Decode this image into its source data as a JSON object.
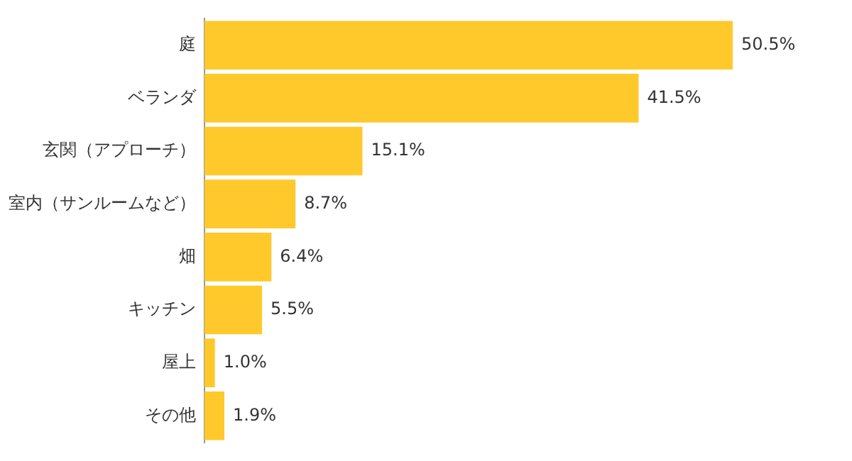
{
  "chart_data": {
    "type": "bar",
    "orientation": "horizontal",
    "categories": [
      "庭",
      "ベランダ",
      "玄関（アプローチ）",
      "室内（サンルームなど）",
      "畑",
      "キッチン",
      "屋上",
      "その他"
    ],
    "values": [
      50.5,
      41.5,
      15.1,
      8.7,
      6.4,
      5.5,
      1.0,
      1.9
    ],
    "value_labels": [
      "50.5%",
      "41.5%",
      "15.1%",
      "8.7%",
      "6.4%",
      "5.5%",
      "1.0%",
      "1.9%"
    ],
    "color": "#ffc92b"
  }
}
